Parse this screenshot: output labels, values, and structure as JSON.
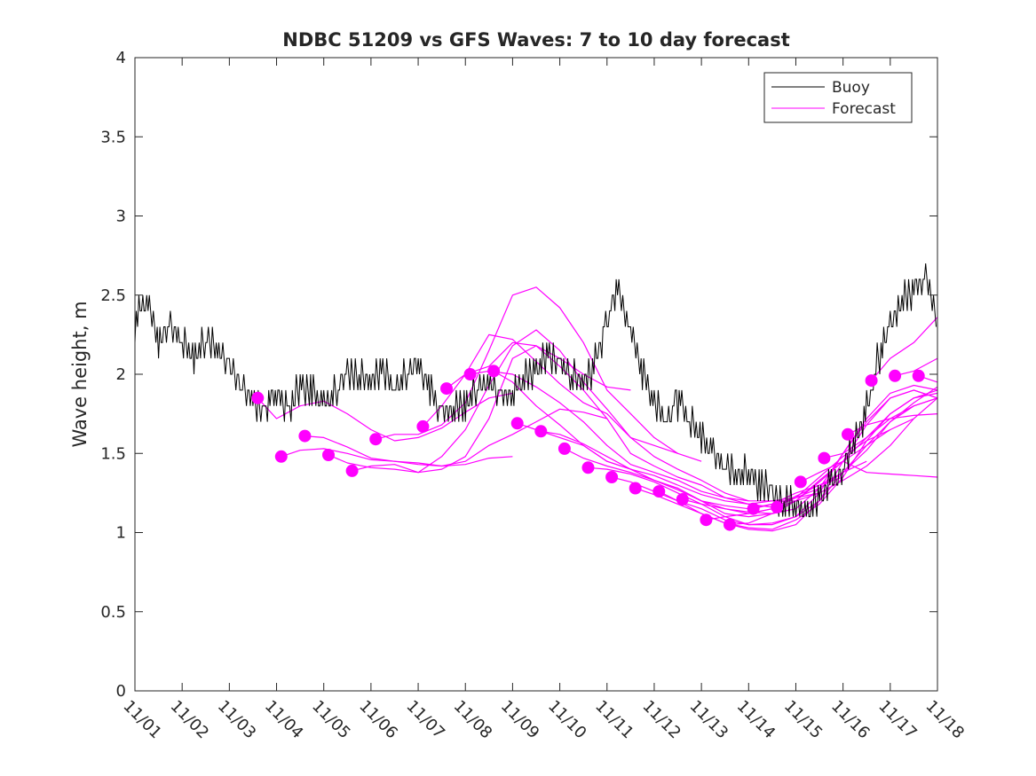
{
  "chart_data": {
    "type": "line",
    "title": "NDBC 51209 vs GFS Waves: 7 to 10 day forecast",
    "xlabel": "",
    "ylabel": "Wave height, m",
    "xlim": [
      0,
      17
    ],
    "ylim": [
      0,
      4
    ],
    "x_tick_labels": [
      "11/01",
      "11/02",
      "11/03",
      "11/04",
      "11/05",
      "11/06",
      "11/07",
      "11/08",
      "11/09",
      "11/10",
      "11/11",
      "11/12",
      "11/13",
      "11/14",
      "11/15",
      "11/16",
      "11/17",
      "11/18"
    ],
    "y_ticks": [
      0,
      0.5,
      1,
      1.5,
      2,
      2.5,
      3,
      3.5,
      4
    ],
    "y_tick_labels": [
      "0",
      "0.5",
      "1",
      "1.5",
      "2",
      "2.5",
      "3",
      "3.5",
      "4"
    ],
    "grid": false,
    "legend": {
      "placement": "top-right",
      "entries": [
        {
          "label": "Buoy",
          "color": "#000000"
        },
        {
          "label": "Forecast",
          "color": "#ff00ff"
        }
      ]
    },
    "colors": {
      "buoy": "#000000",
      "forecast": "#ff00ff",
      "axis": "#262626"
    },
    "series": [
      {
        "name": "Buoy",
        "color": "#000000",
        "x": [
          0,
          0.25,
          0.5,
          0.75,
          1,
          1.25,
          1.5,
          1.75,
          2,
          2.25,
          2.5,
          2.75,
          3,
          3.25,
          3.5,
          3.75,
          4,
          4.25,
          4.5,
          4.75,
          5,
          5.25,
          5.5,
          5.75,
          6,
          6.25,
          6.5,
          6.75,
          7,
          7.25,
          7.5,
          7.75,
          8,
          8.25,
          8.5,
          8.75,
          9,
          9.25,
          9.5,
          9.75,
          10,
          10.25,
          10.5,
          10.75,
          11,
          11.25,
          11.5,
          11.75,
          12,
          12.25,
          12.5,
          12.75,
          13,
          13.25,
          13.5,
          13.75,
          14,
          14.25,
          14.5,
          14.75,
          15,
          15.25,
          15.5,
          15.75,
          16,
          16.25,
          16.5,
          16.75,
          17
        ],
        "y": [
          2.35,
          2.45,
          2.2,
          2.3,
          2.25,
          2.15,
          2.2,
          2.15,
          2.05,
          1.95,
          1.85,
          1.8,
          1.85,
          1.75,
          1.95,
          1.9,
          1.85,
          1.9,
          1.95,
          2.0,
          1.95,
          2.05,
          1.95,
          2.0,
          2.05,
          1.9,
          1.75,
          1.8,
          1.85,
          1.9,
          1.95,
          1.85,
          1.9,
          2.0,
          2.05,
          2.1,
          2.05,
          2.0,
          1.95,
          2.1,
          2.35,
          2.5,
          2.3,
          2.0,
          1.85,
          1.75,
          1.85,
          1.7,
          1.6,
          1.5,
          1.45,
          1.4,
          1.35,
          1.3,
          1.25,
          1.2,
          1.2,
          1.15,
          1.2,
          1.3,
          1.4,
          1.6,
          1.8,
          2.1,
          2.3,
          2.45,
          2.55,
          2.6,
          2.4
        ]
      }
    ],
    "forecast_runs": [
      {
        "x": [
          2.6,
          3.0,
          3.5,
          4.0,
          4.5,
          5.0,
          5.5,
          6.0,
          6.5,
          7.0,
          7.5,
          8.0
        ],
        "y": [
          1.85,
          1.72,
          1.8,
          1.83,
          1.75,
          1.65,
          1.58,
          1.6,
          1.66,
          1.76,
          1.85,
          1.88
        ]
      },
      {
        "x": [
          3.1,
          3.5,
          4.0,
          4.5,
          5.0,
          5.5,
          6.0,
          6.5,
          7.0,
          7.5,
          8.0
        ],
        "y": [
          1.48,
          1.52,
          1.53,
          1.5,
          1.46,
          1.45,
          1.44,
          1.42,
          1.43,
          1.47,
          1.48
        ]
      },
      {
        "x": [
          3.6,
          4.0,
          4.5,
          5.0,
          5.5,
          6.0,
          6.5,
          7.0,
          7.5,
          8.0,
          8.5,
          9.0,
          9.5,
          10.0
        ],
        "y": [
          1.61,
          1.6,
          1.54,
          1.47,
          1.45,
          1.43,
          1.42,
          1.45,
          1.55,
          1.62,
          1.7,
          1.78,
          1.76,
          1.72
        ]
      },
      {
        "x": [
          4.1,
          4.5,
          5.0,
          5.5,
          6.0,
          6.5,
          7.0,
          7.5,
          8.0,
          8.5,
          9.0,
          9.5,
          10.0,
          10.5
        ],
        "y": [
          1.49,
          1.44,
          1.41,
          1.4,
          1.38,
          1.4,
          1.48,
          1.72,
          2.1,
          2.18,
          2.1,
          2.0,
          1.92,
          1.9
        ]
      },
      {
        "x": [
          4.6,
          5.0,
          5.5,
          6.0,
          6.5,
          7.0,
          7.5,
          8.0,
          8.5,
          9.0,
          9.5,
          10.0,
          10.5,
          11.0,
          11.5
        ],
        "y": [
          1.39,
          1.42,
          1.43,
          1.38,
          1.48,
          1.65,
          1.93,
          2.18,
          2.28,
          2.15,
          1.95,
          1.78,
          1.6,
          1.55,
          1.5
        ]
      },
      {
        "x": [
          5.1,
          5.5,
          6.0,
          6.5,
          7.0,
          7.5,
          8.0,
          8.5,
          9.0,
          9.5,
          10.0,
          10.5,
          11.0,
          11.5,
          12.0
        ],
        "y": [
          1.59,
          1.62,
          1.62,
          1.68,
          1.82,
          2.15,
          2.5,
          2.55,
          2.42,
          2.2,
          1.9,
          1.75,
          1.6,
          1.5,
          1.45
        ]
      },
      {
        "x": [
          6.1,
          6.5,
          7.0,
          7.5,
          8.0,
          8.5,
          9.0,
          9.5,
          10.0,
          10.5,
          11.0,
          11.5,
          12.0,
          12.5,
          13.0
        ],
        "y": [
          1.67,
          1.8,
          2.0,
          2.25,
          2.22,
          2.08,
          1.94,
          1.82,
          1.75,
          1.6,
          1.48,
          1.4,
          1.33,
          1.25,
          1.2
        ]
      },
      {
        "x": [
          6.6,
          7.0,
          7.5,
          8.0,
          8.5,
          9.0,
          9.5,
          10.0,
          10.5,
          11.0,
          11.5,
          12.0,
          12.5,
          13.0,
          13.5
        ],
        "y": [
          1.91,
          2.0,
          2.05,
          2.2,
          2.18,
          2.05,
          1.9,
          1.72,
          1.5,
          1.42,
          1.35,
          1.3,
          1.22,
          1.18,
          1.16
        ]
      },
      {
        "x": [
          7.1,
          7.5,
          8.0,
          8.5,
          9.0,
          9.5,
          10.0,
          10.5,
          11.0,
          11.5,
          12.0,
          12.5,
          13.0,
          13.5,
          14.0
        ],
        "y": [
          2.0,
          2.02,
          2.0,
          1.92,
          1.82,
          1.7,
          1.55,
          1.43,
          1.38,
          1.33,
          1.26,
          1.22,
          1.2,
          1.2,
          1.2
        ]
      },
      {
        "x": [
          7.6,
          8.0,
          8.5,
          9.0,
          9.5,
          10.0,
          10.5,
          11.0,
          11.5,
          12.0,
          12.5,
          13.0,
          13.5,
          14.0,
          14.5
        ],
        "y": [
          2.02,
          1.95,
          1.8,
          1.68,
          1.55,
          1.45,
          1.4,
          1.36,
          1.3,
          1.24,
          1.2,
          1.18,
          1.2,
          1.22,
          1.25
        ]
      },
      {
        "x": [
          8.1,
          8.5,
          9.0,
          9.5,
          10.0,
          10.5,
          11.0,
          11.5,
          12.0,
          12.5,
          13.0,
          13.5,
          14.0,
          14.5,
          15.0
        ],
        "y": [
          1.69,
          1.65,
          1.6,
          1.55,
          1.45,
          1.4,
          1.33,
          1.28,
          1.2,
          1.17,
          1.15,
          1.18,
          1.25,
          1.3,
          1.35
        ]
      },
      {
        "x": [
          8.6,
          9.0,
          9.5,
          10.0,
          10.5,
          11.0,
          11.5,
          12.0,
          12.5,
          13.0,
          13.5,
          14.0,
          14.5,
          15.0,
          15.5
        ],
        "y": [
          1.64,
          1.62,
          1.56,
          1.48,
          1.4,
          1.33,
          1.27,
          1.2,
          1.15,
          1.12,
          1.15,
          1.23,
          1.3,
          1.38,
          1.45
        ]
      },
      {
        "x": [
          9.1,
          9.5,
          10.0,
          10.5,
          11.0,
          11.5,
          12.0,
          12.5,
          13.0,
          13.5,
          14.0,
          14.5,
          15.0,
          15.5,
          16.0,
          16.5
        ],
        "y": [
          1.53,
          1.47,
          1.42,
          1.38,
          1.33,
          1.28,
          1.2,
          1.12,
          1.1,
          1.12,
          1.2,
          1.33,
          1.45,
          1.55,
          1.65,
          1.72
        ]
      },
      {
        "x": [
          9.6,
          10.0,
          10.5,
          11.0,
          11.5,
          12.0,
          12.5,
          13.0,
          13.5,
          14.0,
          14.5,
          15.0,
          15.5,
          16.0,
          16.5,
          17.0
        ],
        "y": [
          1.41,
          1.4,
          1.37,
          1.32,
          1.25,
          1.18,
          1.1,
          1.05,
          1.06,
          1.1,
          1.2,
          1.38,
          1.55,
          1.7,
          1.8,
          1.85
        ]
      },
      {
        "x": [
          10.1,
          10.5,
          11.0,
          11.5,
          12.0,
          12.5,
          13.0,
          13.5,
          14.0,
          14.5,
          15.0,
          15.5,
          16.0,
          16.5,
          17.0
        ],
        "y": [
          1.35,
          1.32,
          1.26,
          1.2,
          1.12,
          1.06,
          1.03,
          1.02,
          1.08,
          1.18,
          1.35,
          1.58,
          1.75,
          1.85,
          1.88
        ]
      },
      {
        "x": [
          10.6,
          11.0,
          11.5,
          12.0,
          12.5,
          13.0,
          13.5,
          14.0,
          14.5,
          15.0,
          15.5,
          16.0,
          16.5,
          17.0
        ],
        "y": [
          1.28,
          1.24,
          1.18,
          1.12,
          1.06,
          1.02,
          1.01,
          1.05,
          1.2,
          1.45,
          1.68,
          1.85,
          1.9,
          1.85
        ]
      },
      {
        "x": [
          11.1,
          11.5,
          12.0,
          12.5,
          13.0,
          13.5,
          14.0,
          14.5,
          15.0,
          15.5,
          16.0,
          16.5,
          17.0
        ],
        "y": [
          1.26,
          1.2,
          1.15,
          1.08,
          1.05,
          1.05,
          1.1,
          1.25,
          1.5,
          1.72,
          1.88,
          1.93,
          1.9
        ]
      },
      {
        "x": [
          11.6,
          12.0,
          12.5,
          13.0,
          13.5,
          14.0,
          14.5,
          15.0,
          15.5,
          16.0,
          16.5,
          17.0
        ],
        "y": [
          1.21,
          1.18,
          1.15,
          1.13,
          1.12,
          1.15,
          1.28,
          1.5,
          1.7,
          1.85,
          1.9,
          1.85
        ]
      },
      {
        "x": [
          12.1,
          12.5,
          13.0,
          13.5,
          14.0,
          14.5,
          15.0,
          15.5,
          16.0
        ],
        "y": [
          1.08,
          1.1,
          1.12,
          1.15,
          1.22,
          1.35,
          1.48,
          1.58,
          1.65
        ]
      },
      {
        "x": [
          12.6,
          13.0,
          13.5,
          14.0,
          14.5,
          15.0,
          15.5,
          16.0,
          16.5,
          17.0
        ],
        "y": [
          1.05,
          1.06,
          1.12,
          1.2,
          1.32,
          1.45,
          1.6,
          1.75,
          1.85,
          1.9
        ]
      },
      {
        "x": [
          13.1,
          13.5,
          14.0,
          14.5,
          15.0,
          15.5,
          16.0,
          16.5,
          17.0
        ],
        "y": [
          1.15,
          1.18,
          1.22,
          1.28,
          1.38,
          1.52,
          1.7,
          1.82,
          1.92
        ]
      },
      {
        "x": [
          13.6,
          14.0,
          14.5,
          15.0,
          15.5,
          16.0,
          16.5,
          17.0
        ],
        "y": [
          1.16,
          1.2,
          1.25,
          1.33,
          1.42,
          1.55,
          1.72,
          1.85
        ]
      },
      {
        "x": [
          14.1,
          14.5,
          15.0,
          15.5,
          16.0,
          16.5,
          17.0
        ],
        "y": [
          1.32,
          1.38,
          1.45,
          1.38,
          1.37,
          1.36,
          1.35
        ]
      },
      {
        "x": [
          14.6,
          15.0,
          15.5,
          16.0,
          16.5,
          17.0
        ],
        "y": [
          1.47,
          1.5,
          1.6,
          1.72,
          1.8,
          1.85
        ]
      },
      {
        "x": [
          15.1,
          15.5,
          16.0,
          16.5,
          17.0
        ],
        "y": [
          1.62,
          1.68,
          1.72,
          1.74,
          1.75
        ]
      },
      {
        "x": [
          15.6,
          16.0,
          16.5,
          17.0
        ],
        "y": [
          1.96,
          2.1,
          2.2,
          2.36
        ]
      },
      {
        "x": [
          16.1,
          16.5,
          17.0
        ],
        "y": [
          1.99,
          2.02,
          2.1
        ]
      },
      {
        "x": [
          16.6,
          17.0
        ],
        "y": [
          1.99,
          1.95
        ]
      }
    ],
    "forecast_start_points": {
      "x": [
        2.6,
        3.1,
        3.6,
        4.1,
        4.6,
        5.1,
        6.1,
        6.6,
        7.1,
        7.6,
        8.1,
        8.6,
        9.1,
        9.6,
        10.1,
        10.6,
        11.1,
        11.6,
        12.1,
        12.6,
        13.1,
        13.6,
        14.1,
        14.6,
        15.1,
        15.6,
        16.1,
        16.6
      ],
      "y": [
        1.85,
        1.48,
        1.61,
        1.49,
        1.39,
        1.59,
        1.67,
        1.91,
        2.0,
        2.02,
        1.69,
        1.64,
        1.53,
        1.41,
        1.35,
        1.28,
        1.26,
        1.21,
        1.08,
        1.05,
        1.15,
        1.16,
        1.32,
        1.47,
        1.62,
        1.96,
        1.99,
        1.99
      ]
    }
  }
}
